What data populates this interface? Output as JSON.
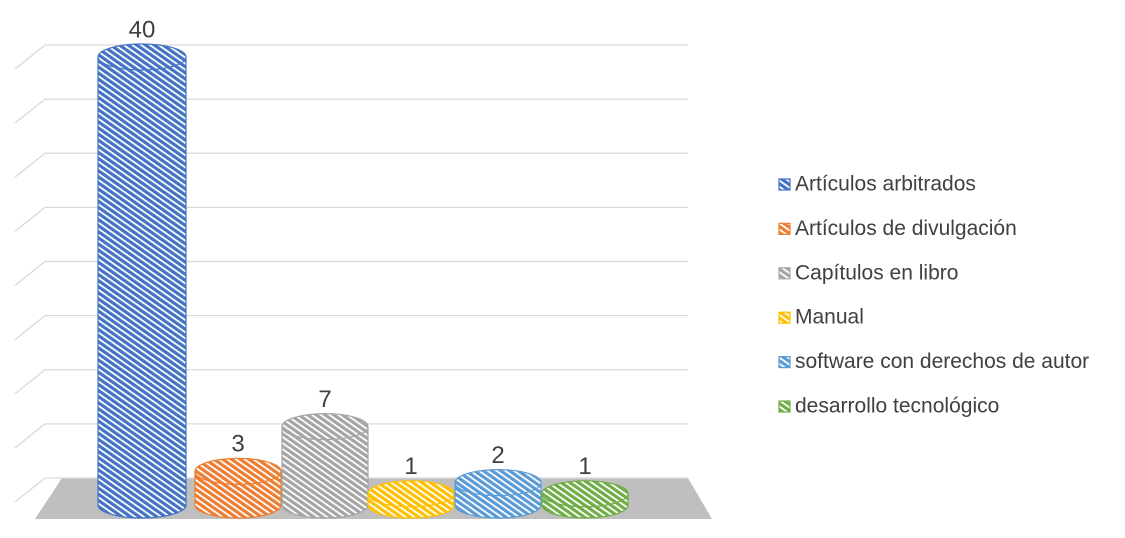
{
  "chart_data": {
    "type": "bar3d",
    "categories": [
      "Artículos arbitrados",
      "Artículos de divulgación",
      "Capítulos en libro",
      "Manual",
      "software con derechos de autor",
      "desarrollo tecnológico"
    ],
    "values": [
      40,
      3,
      7,
      1,
      2,
      1
    ],
    "colors": [
      "#4472c4",
      "#ed7d31",
      "#a5a5a5",
      "#ffc000",
      "#5b9bd5",
      "#70ad47"
    ],
    "ylim": [
      0,
      40
    ],
    "yticks": [
      0,
      5,
      10,
      15,
      20,
      25,
      30,
      35,
      40
    ],
    "grid": true,
    "legend": "right"
  }
}
